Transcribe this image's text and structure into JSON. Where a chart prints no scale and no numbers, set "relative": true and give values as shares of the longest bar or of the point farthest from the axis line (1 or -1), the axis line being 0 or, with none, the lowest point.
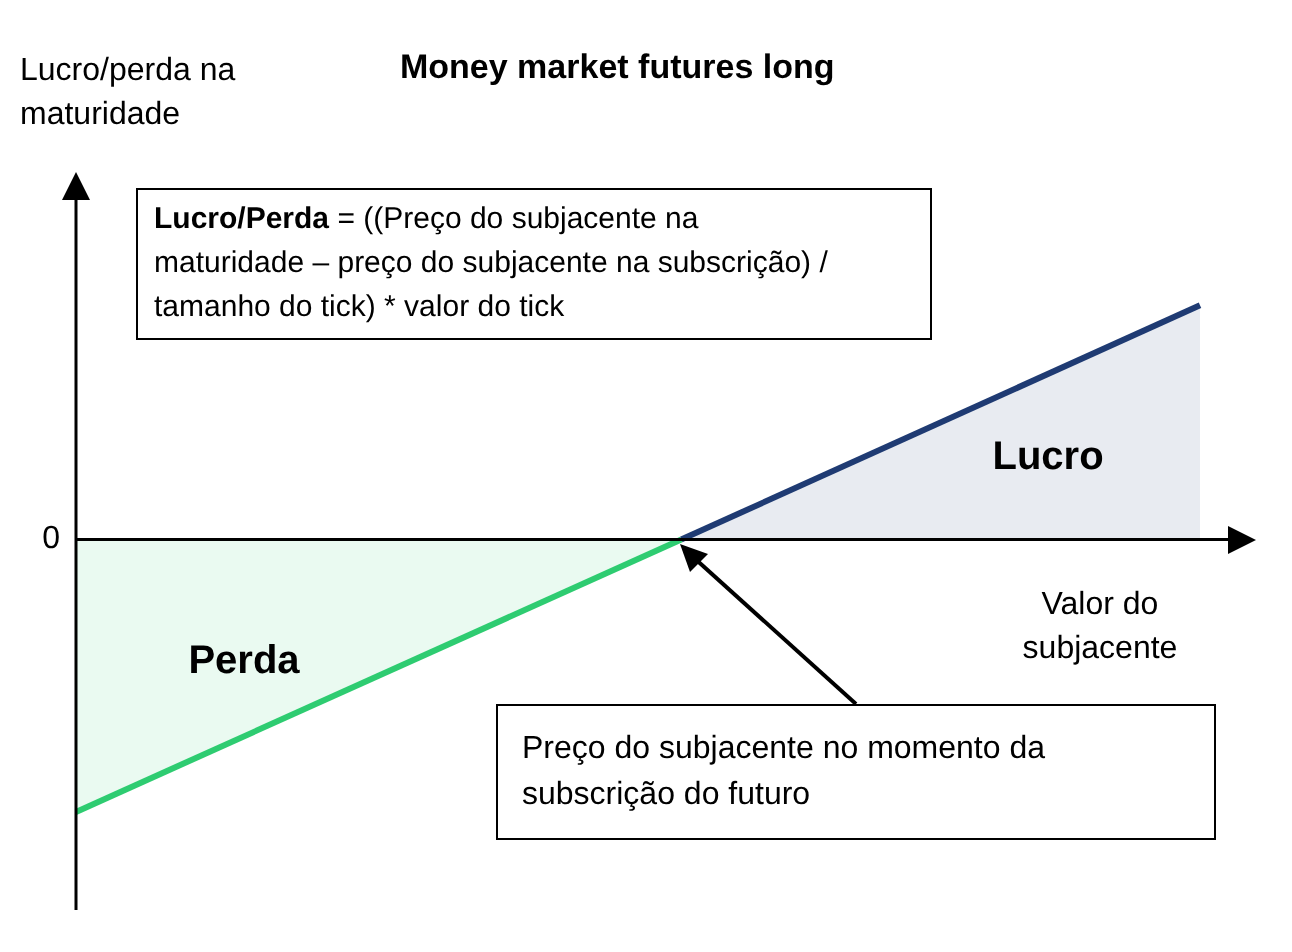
{
  "chart_data": {
    "type": "area",
    "title": "Money market futures long",
    "xlabel": "Valor do subjacente",
    "relative": true,
    "legend": false,
    "categories": [
      null,
      null,
      null,
      null,
      null,
      null,
      null,
      null,
      null,
      null,
      null,
      null,
      null,
      null
    ],
    "series": [
      {
        "name": "Perda",
        "color": "#2ecc71",
        "values": [
          -1,
          null,
          null,
          null,
          null,
          null,
          null,
          0,
          null,
          null,
          null,
          null,
          null,
          null
        ]
      },
      {
        "name": "Lucro",
        "color": "#1f3b73",
        "values": [
          null,
          null,
          null,
          null,
          null,
          null,
          null,
          0,
          null,
          null,
          null,
          null,
          null,
          0.86
        ]
      }
    ],
    "annotations": [
      "0",
      "Lucro/Perda",
      " = ((Preço do subjacente na maturidade – preço do subjacente na subscrição) / tamanho do tick) * valor do tick",
      "Preço do subjacente no momento da subscrição do futuro",
      "Lucro/perda na maturidade"
    ]
  }
}
